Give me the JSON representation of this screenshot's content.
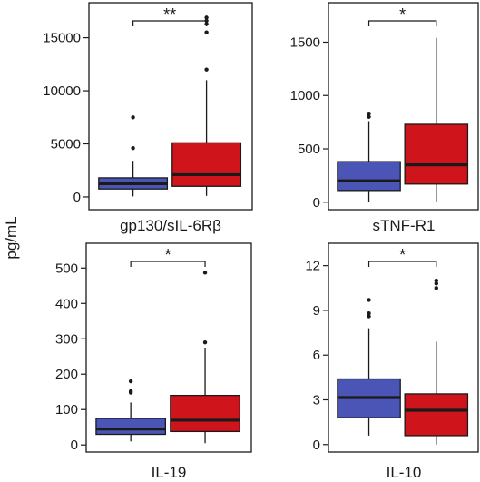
{
  "figure": {
    "ylabel": "pg/mL",
    "colors": {
      "group1": "#4a55b5",
      "group2": "#d0141c",
      "line": "#1a1a1a"
    }
  },
  "chart_data": [
    {
      "type": "box",
      "panel": "top-left",
      "title": "gp130/sIL-6Rβ",
      "ylim": [
        -1200,
        18300
      ],
      "yticks": [
        0,
        5000,
        10000,
        15000
      ],
      "significance": "**",
      "series": [
        {
          "q1": 750,
          "median": 1250,
          "q3": 1800,
          "whisker_low": 50,
          "whisker_high": 3400,
          "outliers": [
            4600,
            7500
          ]
        },
        {
          "q1": 1000,
          "median": 2100,
          "q3": 5100,
          "whisker_low": 100,
          "whisker_high": 11000,
          "outliers": [
            12000,
            15500,
            16300,
            16600,
            16900
          ]
        }
      ]
    },
    {
      "type": "box",
      "panel": "top-right",
      "title": "sTNF-R1",
      "ylim": [
        -70,
        1870
      ],
      "yticks": [
        0,
        500,
        1000,
        1500
      ],
      "significance": "*",
      "series": [
        {
          "q1": 110,
          "median": 200,
          "q3": 380,
          "whisker_low": 0,
          "whisker_high": 760,
          "outliers": [
            800,
            830
          ]
        },
        {
          "q1": 170,
          "median": 350,
          "q3": 730,
          "whisker_low": 0,
          "whisker_high": 1540,
          "outliers": []
        }
      ]
    },
    {
      "type": "box",
      "panel": "bottom-left",
      "title": "IL-19",
      "ylim": [
        -20,
        570
      ],
      "yticks": [
        0,
        100,
        200,
        300,
        400,
        500
      ],
      "significance": "*",
      "series": [
        {
          "q1": 30,
          "median": 45,
          "q3": 75,
          "whisker_low": 10,
          "whisker_high": 120,
          "outliers": [
            148,
            152,
            180
          ]
        },
        {
          "q1": 38,
          "median": 70,
          "q3": 140,
          "whisker_low": 5,
          "whisker_high": 275,
          "outliers": [
            290,
            487
          ]
        }
      ]
    },
    {
      "type": "box",
      "panel": "bottom-right",
      "title": "IL-10",
      "ylim": [
        -0.5,
        13.5
      ],
      "yticks": [
        0,
        3,
        6,
        9,
        12
      ],
      "significance": "*",
      "series": [
        {
          "q1": 1.8,
          "median": 3.15,
          "q3": 4.4,
          "whisker_low": 0.6,
          "whisker_high": 7.8,
          "outliers": [
            8.6,
            8.8,
            9.7
          ]
        },
        {
          "q1": 0.6,
          "median": 2.3,
          "q3": 3.4,
          "whisker_low": 0.0,
          "whisker_high": 6.9,
          "outliers": [
            10.5,
            10.8,
            11.0
          ]
        }
      ]
    }
  ]
}
